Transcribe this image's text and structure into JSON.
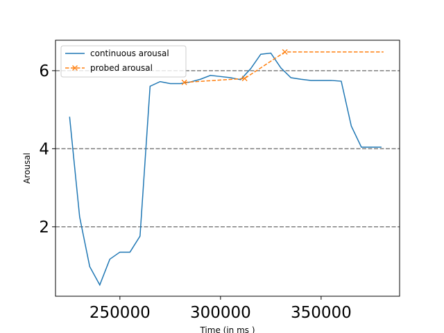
{
  "chart_data": {
    "type": "line",
    "title": "",
    "xlabel": "Time (in ms )",
    "ylabel": "Arousal",
    "xlim": [
      218000,
      389000
    ],
    "ylim": [
      0.22,
      6.78
    ],
    "xticks": [
      250000,
      300000,
      350000
    ],
    "yticks": [
      2,
      4,
      6
    ],
    "xtick_labels": [
      "250000",
      "300000",
      "350000"
    ],
    "ytick_labels": [
      "2",
      "4",
      "6"
    ],
    "hlines": [
      2,
      4,
      6
    ],
    "grid": false,
    "legend_placement": "upper-left",
    "series": [
      {
        "name": "continuous arousal",
        "color": "#1f77b4",
        "style": "solid",
        "marker": "none",
        "x": [
          225000,
          230000,
          235000,
          240000,
          245000,
          250000,
          255000,
          260000,
          265000,
          270000,
          275000,
          280000,
          285000,
          290000,
          295000,
          300000,
          305000,
          310000,
          315000,
          320000,
          325000,
          330000,
          335000,
          340000,
          345000,
          350000,
          355000,
          360000,
          365000,
          370000,
          375000,
          380000
        ],
        "y": [
          4.82,
          2.25,
          0.98,
          0.51,
          1.17,
          1.35,
          1.35,
          1.76,
          5.6,
          5.72,
          5.67,
          5.67,
          5.71,
          5.78,
          5.88,
          5.85,
          5.82,
          5.77,
          6.05,
          6.42,
          6.45,
          6.07,
          5.82,
          5.78,
          5.75,
          5.75,
          5.75,
          5.73,
          4.58,
          4.04,
          4.04,
          4.04
        ]
      },
      {
        "name": "probed arousal",
        "color": "#ff7f0e",
        "style": "dashed",
        "marker": "x",
        "x": [
          282000,
          312000,
          332000,
          381000
        ],
        "y": [
          5.7,
          5.8,
          6.48,
          6.48
        ],
        "marked": [
          true,
          true,
          true,
          false
        ]
      }
    ]
  }
}
